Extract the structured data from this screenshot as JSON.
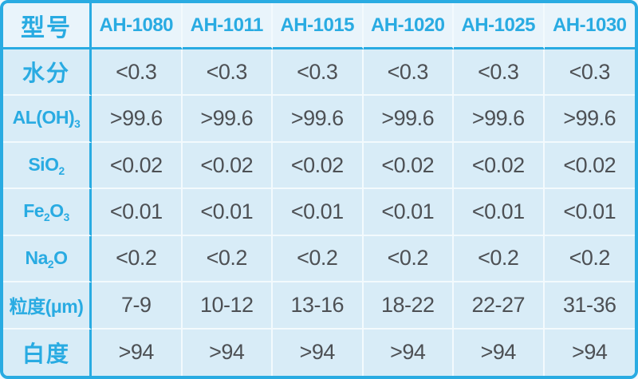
{
  "colors": {
    "accent": "#29abe2",
    "header_bg": "#e9f4fb",
    "cell_bg": "#d8ecf7",
    "grid_line": "#f3fafd",
    "value_text": "#4d5054",
    "outer_bg": "#f2f8fc"
  },
  "table": {
    "header": {
      "corner_label": "型号",
      "models": [
        "AH-1080",
        "AH-1011",
        "AH-1015",
        "AH-1020",
        "AH-1025",
        "AH-1030"
      ]
    },
    "rows": [
      {
        "name": "moisture",
        "cjk": true,
        "label": [
          {
            "text": "水分",
            "sub": false
          }
        ],
        "values": [
          "<0.3",
          "<0.3",
          "<0.3",
          "<0.3",
          "<0.3",
          "<0.3"
        ]
      },
      {
        "name": "aloh3",
        "cjk": false,
        "label": [
          {
            "text": "AL(OH)",
            "sub": false
          },
          {
            "text": "3",
            "sub": true
          }
        ],
        "values": [
          ">99.6",
          ">99.6",
          ">99.6",
          ">99.6",
          ">99.6",
          ">99.6"
        ]
      },
      {
        "name": "sio2",
        "cjk": false,
        "label": [
          {
            "text": "SiO",
            "sub": false
          },
          {
            "text": "2",
            "sub": true
          }
        ],
        "values": [
          "<0.02",
          "<0.02",
          "<0.02",
          "<0.02",
          "<0.02",
          "<0.02"
        ]
      },
      {
        "name": "fe2o3",
        "cjk": false,
        "label": [
          {
            "text": "Fe",
            "sub": false
          },
          {
            "text": "2",
            "sub": true
          },
          {
            "text": "O",
            "sub": false
          },
          {
            "text": "3",
            "sub": true
          }
        ],
        "values": [
          "<0.01",
          "<0.01",
          "<0.01",
          "<0.01",
          "<0.01",
          "<0.01"
        ]
      },
      {
        "name": "na2o",
        "cjk": false,
        "label": [
          {
            "text": "Na",
            "sub": false
          },
          {
            "text": "2",
            "sub": true
          },
          {
            "text": "O",
            "sub": false
          }
        ],
        "values": [
          "<0.2",
          "<0.2",
          "<0.2",
          "<0.2",
          "<0.2",
          "<0.2"
        ]
      },
      {
        "name": "particle-size",
        "cjk": false,
        "label": [
          {
            "text": "粒度(μm)",
            "sub": false
          }
        ],
        "values": [
          "7-9",
          "10-12",
          "13-16",
          "18-22",
          "22-27",
          "31-36"
        ]
      },
      {
        "name": "whiteness",
        "cjk": true,
        "label": [
          {
            "text": "白度",
            "sub": false
          }
        ],
        "values": [
          ">94",
          ">94",
          ">94",
          ">94",
          ">94",
          ">94"
        ]
      }
    ]
  },
  "chart_data": {
    "type": "table",
    "title": "",
    "columns": [
      "型号",
      "AH-1080",
      "AH-1011",
      "AH-1015",
      "AH-1020",
      "AH-1025",
      "AH-1030"
    ],
    "rows": [
      [
        "水分",
        "<0.3",
        "<0.3",
        "<0.3",
        "<0.3",
        "<0.3",
        "<0.3"
      ],
      [
        "AL(OH)3",
        ">99.6",
        ">99.6",
        ">99.6",
        ">99.6",
        ">99.6",
        ">99.6"
      ],
      [
        "SiO2",
        "<0.02",
        "<0.02",
        "<0.02",
        "<0.02",
        "<0.02",
        "<0.02"
      ],
      [
        "Fe2O3",
        "<0.01",
        "<0.01",
        "<0.01",
        "<0.01",
        "<0.01",
        "<0.01"
      ],
      [
        "Na2O",
        "<0.2",
        "<0.2",
        "<0.2",
        "<0.2",
        "<0.2",
        "<0.2"
      ],
      [
        "粒度(μm)",
        "7-9",
        "10-12",
        "13-16",
        "18-22",
        "22-27",
        "31-36"
      ],
      [
        "白度",
        ">94",
        ">94",
        ">94",
        ">94",
        ">94",
        ">94"
      ]
    ]
  }
}
